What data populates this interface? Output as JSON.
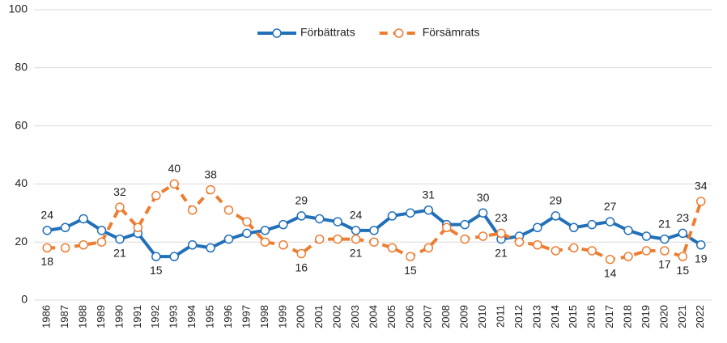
{
  "chart_data": {
    "type": "line",
    "categories": [
      "1986",
      "1987",
      "1988",
      "1989",
      "1990",
      "1991",
      "1992",
      "1993",
      "1994",
      "1995",
      "1996",
      "1997",
      "1998",
      "1999",
      "2000",
      "2001",
      "2002",
      "2003",
      "2004",
      "2005",
      "2006",
      "2007",
      "2008",
      "2009",
      "2010",
      "2011",
      "2012",
      "2013",
      "2014",
      "2015",
      "2016",
      "2017",
      "2018",
      "2019",
      "2020",
      "2021",
      "2022"
    ],
    "series": [
      {
        "name": "Förbättrats",
        "color": "#2270b8",
        "dash": false,
        "values": [
          24,
          25,
          28,
          24,
          21,
          23,
          15,
          15,
          19,
          18,
          21,
          23,
          24,
          26,
          29,
          28,
          27,
          24,
          24,
          29,
          30,
          31,
          26,
          26,
          30,
          21,
          22,
          25,
          29,
          25,
          26,
          27,
          24,
          22,
          21,
          23,
          19
        ],
        "value_labels": [
          "24",
          null,
          null,
          null,
          "21",
          null,
          "15",
          null,
          null,
          null,
          null,
          null,
          null,
          null,
          "29",
          null,
          null,
          "24",
          null,
          null,
          null,
          "31",
          null,
          null,
          "30",
          "21",
          null,
          null,
          "29",
          null,
          null,
          "27",
          null,
          null,
          "21",
          "23",
          "19"
        ]
      },
      {
        "name": "Försämrats",
        "color": "#ed7d31",
        "dash": true,
        "values": [
          18,
          18,
          19,
          20,
          32,
          25,
          36,
          40,
          31,
          38,
          31,
          27,
          20,
          19,
          16,
          21,
          21,
          21,
          20,
          18,
          15,
          18,
          25,
          21,
          22,
          23,
          20,
          19,
          17,
          18,
          17,
          14,
          15,
          17,
          17,
          15,
          34
        ],
        "value_labels": [
          "18",
          null,
          null,
          null,
          "32",
          null,
          null,
          "40",
          null,
          "38",
          null,
          null,
          null,
          null,
          "16",
          null,
          null,
          "21",
          null,
          null,
          "15",
          null,
          null,
          null,
          null,
          "23",
          null,
          null,
          null,
          null,
          null,
          "14",
          null,
          null,
          "17",
          "15",
          "34"
        ]
      }
    ],
    "ylim": [
      0,
      100
    ],
    "yticks": [
      0,
      20,
      40,
      60,
      80,
      100
    ],
    "grid": true,
    "legend": "top"
  }
}
